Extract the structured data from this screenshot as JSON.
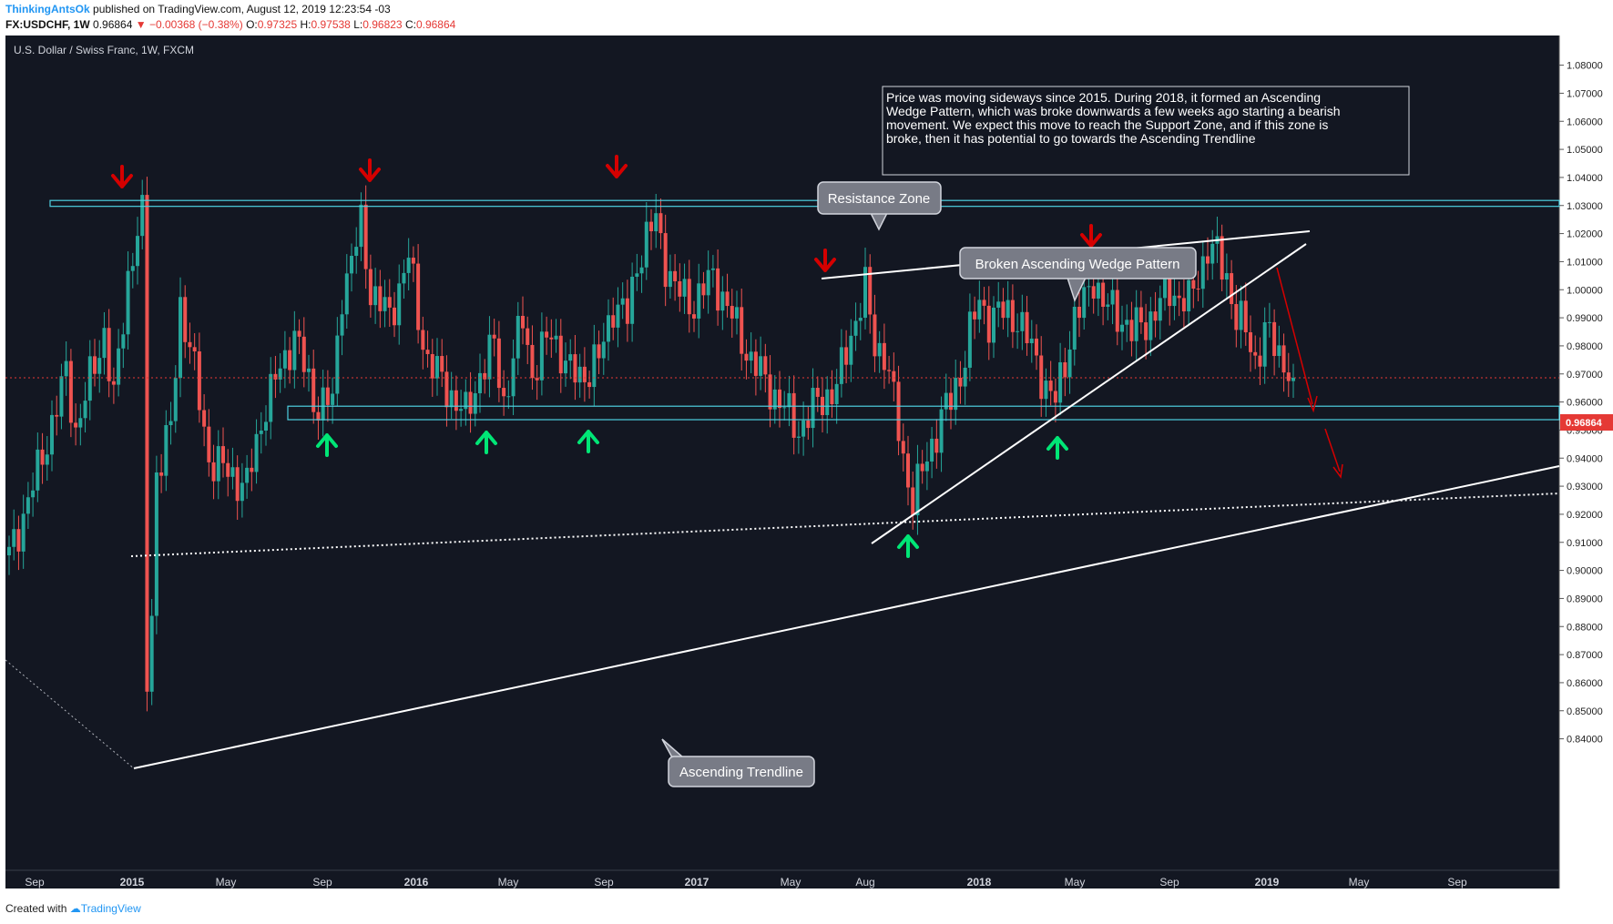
{
  "header": {
    "username": "ThinkingAntsOk",
    "published": "published on TradingView.com, August 12, 2019 12:23:54 -03",
    "symbol": "FX:USDCHF, 1W",
    "last": "0.96864",
    "change": "▼ −0.00368 (−0.38%)",
    "open_label": "O:",
    "open": "0.97325",
    "high_label": "H:",
    "high": "0.97538",
    "low_label": "L:",
    "low": "0.96823",
    "close_label": "C:",
    "close": "0.96864"
  },
  "chart_title": "U.S. Dollar / Swiss Franc, 1W, FXCM",
  "note_lines": [
    "Price was moving sideways since 2015. During 2018, it formed an Ascending",
    "Wedge Pattern, which was broke downwards a few weeks ago starting a bearish",
    "movement. We expect this move to reach the Support Zone, and if this zone is",
    "broke, then it has potential to go towards the Ascending Trendline"
  ],
  "callouts": {
    "resistance": "Resistance Zone",
    "wedge": "Broken Ascending Wedge Pattern",
    "trendline": "Ascending Trendline"
  },
  "price_label": "0.96864",
  "footer": {
    "created": "Created with",
    "brand": "TradingView"
  },
  "colors": {
    "background": "#131722",
    "up": "#26a69a",
    "down": "#ef5350",
    "zone": "#4dd0e1",
    "arrow_down": "#d50000",
    "arrow_up": "#00e676",
    "last_price": "#e53935"
  },
  "chart_data": {
    "type": "candlestick",
    "timeframe": "1W",
    "x_tick_labels": [
      "Sep",
      "2015",
      "May",
      "Sep",
      "2016",
      "May",
      "Sep",
      "2017",
      "May",
      "Aug",
      "2018",
      "May",
      "Sep",
      "2019",
      "May",
      "Sep"
    ],
    "y_tick_labels": [
      "1.08000",
      "1.07000",
      "1.06000",
      "1.05000",
      "1.04000",
      "1.03000",
      "1.02000",
      "1.01000",
      "1.00000",
      "0.99000",
      "0.98000",
      "0.97000",
      "0.96000",
      "0.95000",
      "0.94000",
      "0.93000",
      "0.92000",
      "0.91000",
      "0.90000",
      "0.89000",
      "0.88000",
      "0.87000",
      "0.86000",
      "0.85000",
      "0.84000"
    ],
    "ylim": [
      0.835,
      1.087
    ],
    "last_price": 0.96864,
    "resistance_zone": [
      1.0297,
      1.0318
    ],
    "support_zone": [
      0.9537,
      0.9585
    ],
    "close_path": [
      [
        0,
        0.905
      ],
      [
        6,
        0.935
      ],
      [
        12,
        0.97
      ],
      [
        14,
        0.95
      ],
      [
        20,
        0.985
      ],
      [
        22,
        0.96
      ],
      [
        25,
        1.005
      ],
      [
        27,
        1.02
      ],
      [
        28,
        1.025
      ],
      [
        29,
        0.86
      ],
      [
        30,
        0.885
      ],
      [
        31,
        0.935
      ],
      [
        33,
        0.945
      ],
      [
        34,
        0.95
      ],
      [
        36,
        0.995
      ],
      [
        38,
        0.98
      ],
      [
        40,
        0.96
      ],
      [
        42,
        0.94
      ],
      [
        46,
        0.935
      ],
      [
        50,
        0.93
      ],
      [
        54,
        0.96
      ],
      [
        58,
        0.975
      ],
      [
        60,
        0.985
      ],
      [
        64,
        0.96
      ],
      [
        68,
        0.96
      ],
      [
        70,
        1.0
      ],
      [
        72,
        1.01
      ],
      [
        74,
        1.023
      ],
      [
        76,
        1.0
      ],
      [
        80,
        0.99
      ],
      [
        84,
        1.012
      ],
      [
        86,
        0.99
      ],
      [
        88,
        0.975
      ],
      [
        92,
        0.965
      ],
      [
        96,
        0.955
      ],
      [
        99,
        0.97
      ],
      [
        102,
        0.98
      ],
      [
        104,
        0.96
      ],
      [
        108,
        0.99
      ],
      [
        110,
        0.97
      ],
      [
        114,
        0.985
      ],
      [
        118,
        0.97
      ],
      [
        121,
        0.97
      ],
      [
        124,
        0.975
      ],
      [
        127,
        0.995
      ],
      [
        130,
        0.99
      ],
      [
        132,
        1.01
      ],
      [
        134,
        1.018
      ],
      [
        136,
        1.025
      ],
      [
        138,
        1.01
      ],
      [
        140,
        1.0
      ],
      [
        144,
        0.995
      ],
      [
        148,
        1.005
      ],
      [
        152,
        0.99
      ],
      [
        156,
        0.975
      ],
      [
        158,
        0.97
      ],
      [
        162,
        0.96
      ],
      [
        166,
        0.95
      ],
      [
        170,
        0.96
      ],
      [
        174,
        0.965
      ],
      [
        176,
        0.978
      ],
      [
        178,
        0.99
      ],
      [
        180,
        1.0
      ],
      [
        182,
        0.98
      ],
      [
        184,
        0.978
      ],
      [
        186,
        0.96
      ],
      [
        188,
        0.94
      ],
      [
        190,
        0.925
      ],
      [
        192,
        0.935
      ],
      [
        194,
        0.945
      ],
      [
        196,
        0.955
      ],
      [
        198,
        0.96
      ],
      [
        200,
        0.97
      ],
      [
        202,
        0.985
      ],
      [
        204,
        0.995
      ],
      [
        206,
        0.99
      ],
      [
        208,
        0.992
      ],
      [
        212,
        0.99
      ],
      [
        216,
        0.975
      ],
      [
        218,
        0.965
      ],
      [
        220,
        0.96
      ],
      [
        222,
        0.975
      ],
      [
        224,
        0.99
      ],
      [
        226,
        0.995
      ],
      [
        228,
        1.005
      ],
      [
        230,
        0.995
      ],
      [
        234,
        0.99
      ],
      [
        236,
        0.985
      ],
      [
        240,
        0.99
      ],
      [
        244,
        1.0
      ],
      [
        248,
        0.995
      ],
      [
        250,
        1.005
      ],
      [
        252,
        1.015
      ],
      [
        254,
        1.012
      ],
      [
        256,
        1.005
      ],
      [
        258,
        0.99
      ],
      [
        260,
        0.985
      ],
      [
        262,
        0.975
      ],
      [
        264,
        0.985
      ],
      [
        266,
        0.98
      ],
      [
        268,
        0.975
      ],
      [
        270,
        0.96864
      ]
    ],
    "annotations": {
      "resistance_touches": 4,
      "support_touches": 6
    }
  }
}
